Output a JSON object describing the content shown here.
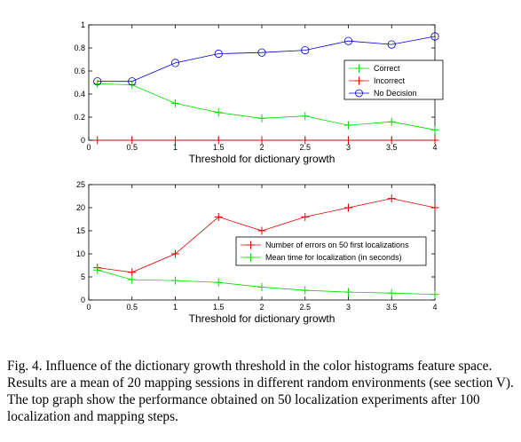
{
  "chart_data": [
    {
      "type": "line",
      "xlabel": "Threshold for dictionary growth",
      "ylabel": "",
      "xlim": [
        0,
        4
      ],
      "ylim": [
        0,
        1
      ],
      "xticks": [
        "0",
        "0.5",
        "1",
        "1.5",
        "2",
        "2.5",
        "3",
        "3.5",
        "4"
      ],
      "yticks": [
        "0",
        "0.2",
        "0.4",
        "0.6",
        "0.8",
        "1"
      ],
      "grid": false,
      "legend_position": "right",
      "x": [
        0.1,
        0.5,
        1,
        1.5,
        2,
        2.5,
        3,
        3.5,
        4
      ],
      "series": [
        {
          "name": "Correct",
          "color": "#00dd00",
          "marker": "plus",
          "values": [
            0.49,
            0.48,
            0.32,
            0.24,
            0.19,
            0.21,
            0.13,
            0.16,
            0.09
          ]
        },
        {
          "name": "Incorrect",
          "color": "#dd0000",
          "marker": "plus",
          "values": [
            0,
            0,
            0,
            0,
            0,
            0,
            0,
            0,
            0
          ]
        },
        {
          "name": "No Decision",
          "color": "#0000cc",
          "marker": "circle",
          "values": [
            0.51,
            0.51,
            0.67,
            0.75,
            0.76,
            0.78,
            0.86,
            0.83,
            0.9
          ]
        }
      ]
    },
    {
      "type": "line",
      "xlabel": "Threshold for dictionary growth",
      "ylabel": "",
      "xlim": [
        0,
        4
      ],
      "ylim": [
        0,
        25
      ],
      "xticks": [
        "0",
        "0.5",
        "1",
        "1.5",
        "2",
        "2.5",
        "3",
        "3.5",
        "4"
      ],
      "yticks": [
        "0",
        "5",
        "10",
        "15",
        "20",
        "25"
      ],
      "grid": false,
      "legend_position": "right",
      "x": [
        0.1,
        0.5,
        1,
        1.5,
        2,
        2.5,
        3,
        3.5,
        4
      ],
      "series": [
        {
          "name": "Number of errors on 50 first localizations",
          "color": "#dd0000",
          "marker": "plus",
          "values": [
            7,
            6,
            10,
            18,
            15,
            18,
            20,
            22,
            20
          ]
        },
        {
          "name": "Mean time for localization (in seconds)",
          "color": "#00dd00",
          "marker": "plus",
          "values": [
            6.5,
            4.4,
            4.2,
            3.8,
            2.8,
            2.1,
            1.7,
            1.5,
            1.2
          ]
        }
      ]
    }
  ],
  "caption": "Fig. 4.   Influence of the dictionary growth threshold in the color histograms feature space. Results are a mean of 20 mapping sessions in different random environments (see section V). The top graph show the performance obtained on 50 localization experiments after 100 localization and mapping steps."
}
